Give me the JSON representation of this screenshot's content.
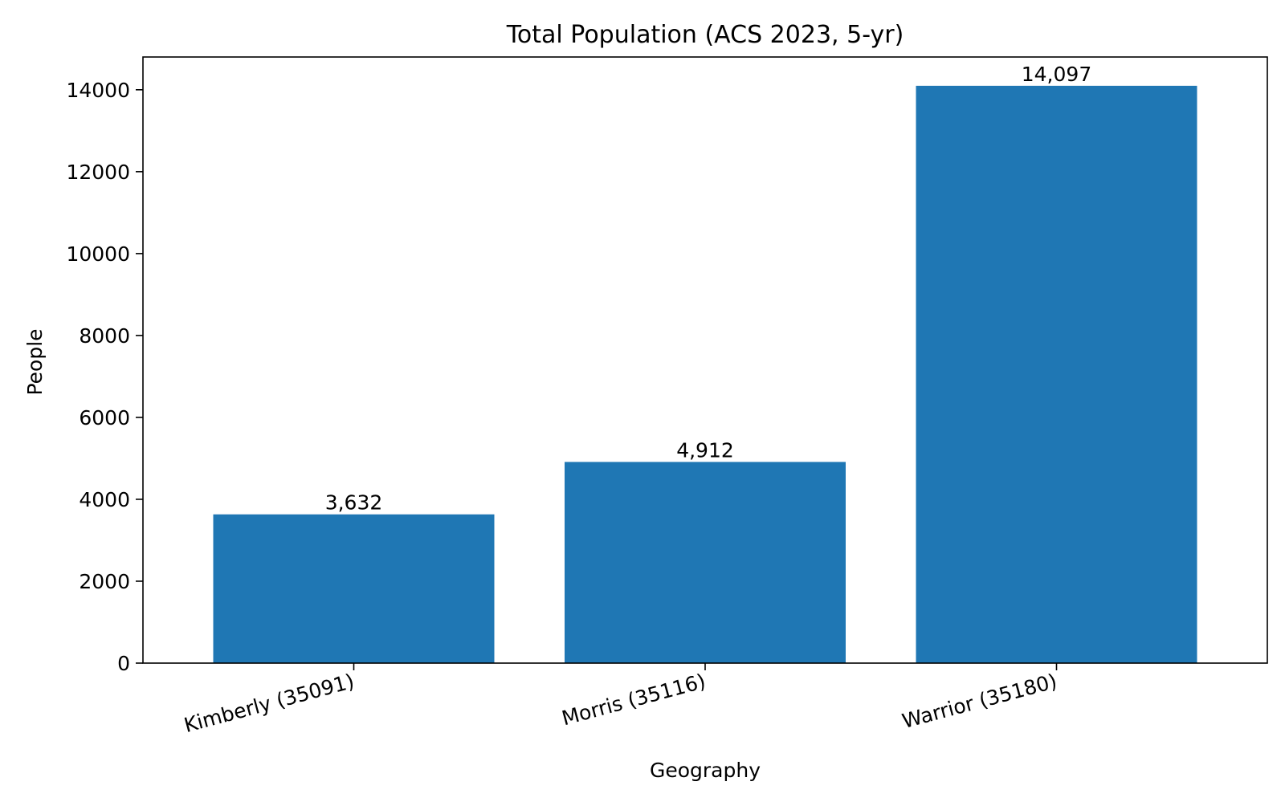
{
  "chart_data": {
    "type": "bar",
    "title": "Total Population (ACS 2023, 5-yr)",
    "xlabel": "Geography",
    "ylabel": "People",
    "categories": [
      "Kimberly (35091)",
      "Morris (35116)",
      "Warrior (35180)"
    ],
    "values": [
      3632,
      4912,
      14097
    ],
    "value_labels": [
      "3,632",
      "4,912",
      "14,097"
    ],
    "ylim": [
      0,
      14800
    ],
    "yticks": [
      0,
      2000,
      4000,
      6000,
      8000,
      10000,
      12000,
      14000
    ],
    "ytick_labels": [
      "0",
      "2000",
      "4000",
      "6000",
      "8000",
      "10000",
      "12000",
      "14000"
    ],
    "bar_color": "#1f77b4",
    "grid": false,
    "legend": "none"
  }
}
